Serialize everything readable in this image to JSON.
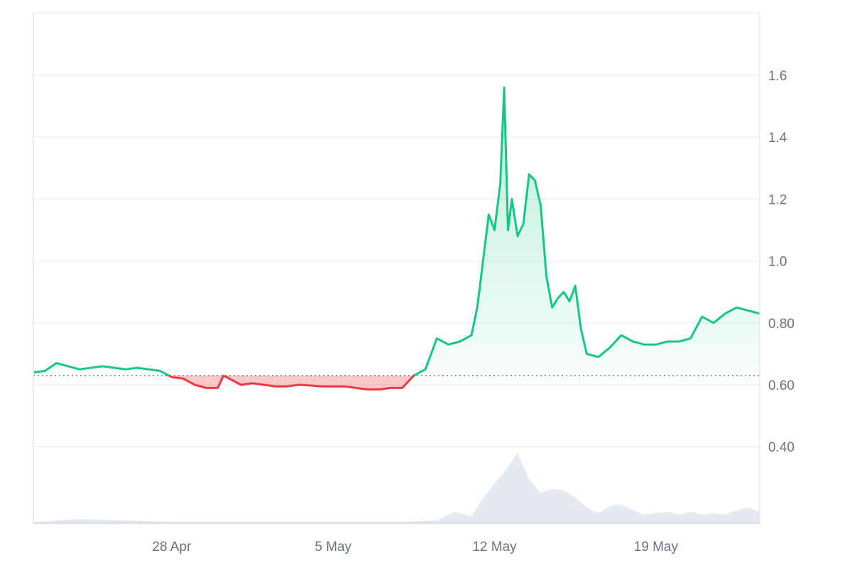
{
  "chart_data": {
    "type": "line",
    "title": "",
    "xlabel": "",
    "ylabel": "",
    "ylim": [
      0.35,
      1.8
    ],
    "y_ticks": [
      0.4,
      0.6,
      0.8,
      1.0,
      1.2,
      1.4,
      1.6
    ],
    "y_tick_labels": [
      "0.40",
      "0.60",
      "0.80",
      "1.0",
      "1.2",
      "1.4",
      "1.6"
    ],
    "x_tick_labels": [
      "28 Apr",
      "5 May",
      "12 May",
      "19 May"
    ],
    "x_ticks": [
      "2025-04-28",
      "2025-05-05",
      "2025-05-12",
      "2025-05-19"
    ],
    "xlim": [
      "2025-04-22T00:00",
      "2025-05-23T12:00"
    ],
    "baseline": 0.63,
    "grid": true,
    "legend": "none",
    "colors": {
      "up": "#16c784",
      "down": "#ea3943",
      "volume": "#e5eaf0",
      "grid": "#eef0f3"
    },
    "series": [
      {
        "x": [
          "2025-04-22T00:00",
          "2025-04-22T12:00",
          "2025-04-23T00:00",
          "2025-04-23T12:00",
          "2025-04-24T00:00",
          "2025-04-24T12:00",
          "2025-04-25T00:00",
          "2025-04-25T12:00",
          "2025-04-26T00:00",
          "2025-04-26T12:00",
          "2025-04-27T00:00",
          "2025-04-27T12:00",
          "2025-04-28T00:00",
          "2025-04-28T12:00",
          "2025-04-29T00:00",
          "2025-04-29T12:00",
          "2025-04-30T00:00",
          "2025-04-30T06:00",
          "2025-04-30T12:00",
          "2025-05-01T00:00",
          "2025-05-01T12:00",
          "2025-05-02T00:00",
          "2025-05-02T12:00",
          "2025-05-03T00:00",
          "2025-05-03T12:00",
          "2025-05-04T00:00",
          "2025-05-04T12:00",
          "2025-05-05T00:00",
          "2025-05-05T12:00",
          "2025-05-06T00:00",
          "2025-05-06T12:00",
          "2025-05-07T00:00",
          "2025-05-07T12:00",
          "2025-05-08T00:00",
          "2025-05-08T06:00",
          "2025-05-08T12:00",
          "2025-05-09T00:00",
          "2025-05-09T06:00",
          "2025-05-09T12:00",
          "2025-05-10T00:00",
          "2025-05-10T12:00",
          "2025-05-11T00:00",
          "2025-05-11T06:00",
          "2025-05-11T12:00",
          "2025-05-11T18:00",
          "2025-05-12T00:00",
          "2025-05-12T06:00",
          "2025-05-12T10:00",
          "2025-05-12T14:00",
          "2025-05-12T18:00",
          "2025-05-13T00:00",
          "2025-05-13T06:00",
          "2025-05-13T12:00",
          "2025-05-13T18:00",
          "2025-05-14T00:00",
          "2025-05-14T06:00",
          "2025-05-14T12:00",
          "2025-05-14T18:00",
          "2025-05-15T00:00",
          "2025-05-15T06:00",
          "2025-05-15T12:00",
          "2025-05-15T18:00",
          "2025-05-16T00:00",
          "2025-05-16T12:00",
          "2025-05-17T00:00",
          "2025-05-17T12:00",
          "2025-05-18T00:00",
          "2025-05-18T12:00",
          "2025-05-19T00:00",
          "2025-05-19T12:00",
          "2025-05-20T00:00",
          "2025-05-20T12:00",
          "2025-05-21T00:00",
          "2025-05-21T12:00",
          "2025-05-22T00:00",
          "2025-05-22T12:00",
          "2025-05-23T00:00",
          "2025-05-23T12:00"
        ],
        "values": [
          0.64,
          0.645,
          0.67,
          0.66,
          0.65,
          0.655,
          0.66,
          0.655,
          0.65,
          0.655,
          0.65,
          0.645,
          0.625,
          0.62,
          0.6,
          0.59,
          0.59,
          0.63,
          0.62,
          0.6,
          0.605,
          0.6,
          0.595,
          0.595,
          0.6,
          0.598,
          0.595,
          0.595,
          0.595,
          0.59,
          0.585,
          0.585,
          0.59,
          0.59,
          0.61,
          0.63,
          0.65,
          0.7,
          0.75,
          0.73,
          0.74,
          0.76,
          0.85,
          1.0,
          1.15,
          1.1,
          1.25,
          1.56,
          1.1,
          1.2,
          1.08,
          1.12,
          1.28,
          1.26,
          1.18,
          0.95,
          0.85,
          0.88,
          0.9,
          0.87,
          0.92,
          0.78,
          0.7,
          0.69,
          0.72,
          0.76,
          0.74,
          0.73,
          0.73,
          0.74,
          0.74,
          0.75,
          0.82,
          0.8,
          0.83,
          0.85,
          0.84,
          0.83
        ]
      }
    ],
    "volume": {
      "x": [
        "2025-04-22T00:00",
        "2025-04-24T00:00",
        "2025-04-26T00:00",
        "2025-04-28T00:00",
        "2025-04-30T00:00",
        "2025-05-02T00:00",
        "2025-05-04T00:00",
        "2025-05-06T00:00",
        "2025-05-08T00:00",
        "2025-05-09T12:00",
        "2025-05-10T06:00",
        "2025-05-11T00:00",
        "2025-05-11T12:00",
        "2025-05-12T00:00",
        "2025-05-12T12:00",
        "2025-05-13T00:00",
        "2025-05-13T12:00",
        "2025-05-14T00:00",
        "2025-05-14T12:00",
        "2025-05-15T00:00",
        "2025-05-15T12:00",
        "2025-05-16T00:00",
        "2025-05-16T12:00",
        "2025-05-17T00:00",
        "2025-05-17T12:00",
        "2025-05-18T00:00",
        "2025-05-18T12:00",
        "2025-05-19T00:00",
        "2025-05-19T12:00",
        "2025-05-20T00:00",
        "2025-05-20T12:00",
        "2025-05-21T00:00",
        "2025-05-21T12:00",
        "2025-05-22T00:00",
        "2025-05-22T12:00",
        "2025-05-23T00:00",
        "2025-05-23T12:00"
      ],
      "relative": [
        0.02,
        0.06,
        0.04,
        0.02,
        0.02,
        0.02,
        0.02,
        0.02,
        0.02,
        0.04,
        0.16,
        0.1,
        0.35,
        0.55,
        0.75,
        0.98,
        0.62,
        0.42,
        0.48,
        0.46,
        0.36,
        0.22,
        0.14,
        0.24,
        0.26,
        0.18,
        0.12,
        0.14,
        0.16,
        0.12,
        0.16,
        0.12,
        0.14,
        0.12,
        0.18,
        0.22,
        0.16
      ]
    }
  }
}
